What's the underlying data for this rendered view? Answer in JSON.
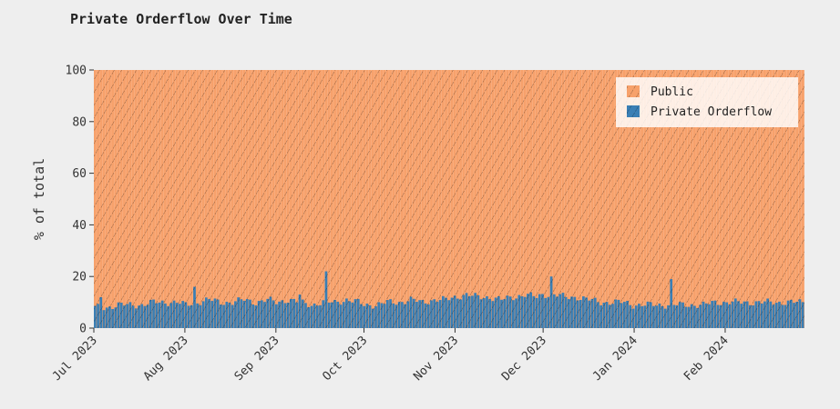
{
  "chart_data": {
    "type": "bar",
    "stacked": true,
    "title": "Private Orderflow Over Time",
    "xlabel": "",
    "ylabel": "% of total",
    "ylim": [
      0,
      100
    ],
    "y_ticks": [
      0,
      20,
      40,
      60,
      80,
      100
    ],
    "x_range": [
      "2023-07-01",
      "2024-02-28"
    ],
    "x_ticks": [
      {
        "date": "2023-07-01",
        "label": "Jul 2023"
      },
      {
        "date": "2023-08-01",
        "label": "Aug 2023"
      },
      {
        "date": "2023-09-01",
        "label": "Sep 2023"
      },
      {
        "date": "2023-10-01",
        "label": "Oct 2023"
      },
      {
        "date": "2023-11-01",
        "label": "Nov 2023"
      },
      {
        "date": "2023-12-01",
        "label": "Dec 2023"
      },
      {
        "date": "2024-01-01",
        "label": "Jan 2024"
      },
      {
        "date": "2024-02-01",
        "label": "Feb 2024"
      }
    ],
    "grid": false,
    "legend_position": "top-right",
    "series": [
      {
        "name": "Public",
        "color": "#f7a16b",
        "pattern": "diagonal-hatch",
        "note": "remainder to 100%"
      },
      {
        "name": "Private Orderflow",
        "color": "#3a7fb5",
        "pattern": "diagonal-hatch"
      }
    ],
    "x_dates": [
      "2023-07-01",
      "2023-07-05",
      "2023-07-09",
      "2023-07-13",
      "2023-07-17",
      "2023-07-21",
      "2023-07-25",
      "2023-07-29",
      "2023-08-01",
      "2023-08-05",
      "2023-08-09",
      "2023-08-13",
      "2023-08-17",
      "2023-08-21",
      "2023-08-25",
      "2023-08-29",
      "2023-09-01",
      "2023-09-05",
      "2023-09-09",
      "2023-09-13",
      "2023-09-17",
      "2023-09-21",
      "2023-09-25",
      "2023-09-29",
      "2023-10-01",
      "2023-10-05",
      "2023-10-09",
      "2023-10-13",
      "2023-10-17",
      "2023-10-21",
      "2023-10-25",
      "2023-10-29",
      "2023-11-01",
      "2023-11-05",
      "2023-11-09",
      "2023-11-13",
      "2023-11-17",
      "2023-11-21",
      "2023-11-25",
      "2023-11-29",
      "2023-12-01",
      "2023-12-05",
      "2023-12-09",
      "2023-12-13",
      "2023-12-17",
      "2023-12-21",
      "2023-12-25",
      "2023-12-29",
      "2024-01-01",
      "2024-01-05",
      "2024-01-09",
      "2024-01-13",
      "2024-01-17",
      "2024-01-21",
      "2024-01-25",
      "2024-01-29",
      "2024-02-01",
      "2024-02-05",
      "2024-02-09",
      "2024-02-13",
      "2024-02-17",
      "2024-02-21",
      "2024-02-25"
    ],
    "private_values": [
      8,
      8,
      9,
      9,
      9,
      10,
      10,
      10,
      9,
      10,
      11,
      10,
      10,
      11,
      10,
      11,
      10,
      11,
      10,
      9,
      10,
      10,
      11,
      10,
      9,
      9,
      10,
      10,
      11,
      10,
      11,
      11,
      12,
      13,
      12,
      12,
      11,
      12,
      13,
      12,
      13,
      13,
      12,
      12,
      11,
      10,
      10,
      10,
      9,
      9,
      9,
      9,
      9,
      9,
      9,
      10,
      10,
      10,
      10,
      10,
      10,
      10,
      10
    ],
    "spikes": [
      {
        "date": "2023-07-03",
        "value": 12
      },
      {
        "date": "2023-08-04",
        "value": 16
      },
      {
        "date": "2023-09-09",
        "value": 13
      },
      {
        "date": "2023-09-18",
        "value": 22
      },
      {
        "date": "2023-12-04",
        "value": 20
      },
      {
        "date": "2024-01-14",
        "value": 19
      }
    ]
  }
}
